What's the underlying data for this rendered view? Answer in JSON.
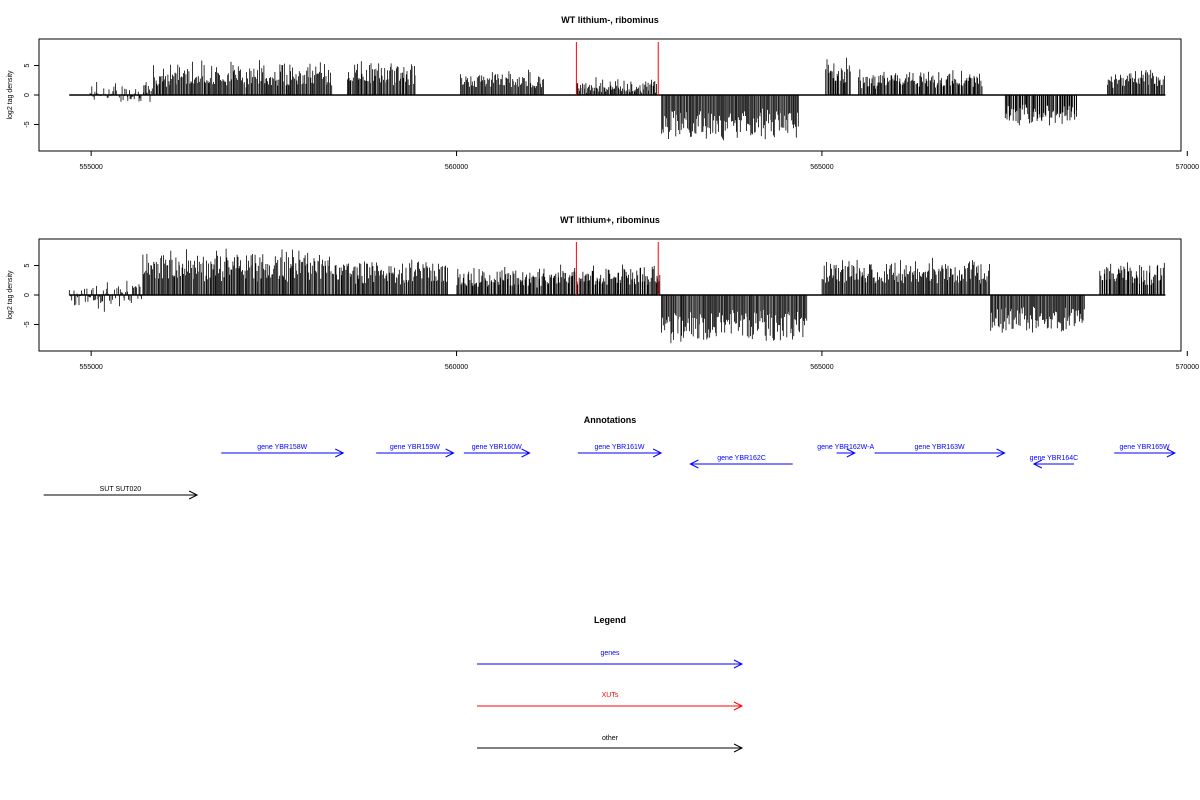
{
  "colors": {
    "genes": "#0000ff",
    "xuts": "#ff0000",
    "other": "#000000",
    "frame": "#000000",
    "red_marker": "#ff0000"
  },
  "chart_data": [
    {
      "type": "bar",
      "title": "WT lithium-, ribominus",
      "xlabel": "",
      "ylabel": "log2 tag density",
      "xlim": [
        554300,
        569900
      ],
      "ylim": [
        -9.5,
        9.5
      ],
      "xticks": [
        555000,
        560000,
        565000,
        570000
      ],
      "xtick_labels": [
        "555000",
        "560000",
        "565000",
        "570000"
      ],
      "yticks": [
        5,
        0,
        -5
      ],
      "ytick_labels": [
        "5",
        "0",
        "-5"
      ],
      "red_markers_x": [
        561640,
        562760
      ],
      "series": [
        {
          "x": [
            554980,
            555850
          ],
          "y": [
            -1.5,
            2.5
          ]
        },
        {
          "x": [
            555850,
            558300
          ],
          "y": [
            3.5,
            6.5
          ]
        },
        {
          "x": [
            558500,
            559450
          ],
          "y": [
            4.5,
            6.0
          ]
        },
        {
          "x": [
            560050,
            561200
          ],
          "y": [
            3.0,
            4.5
          ]
        },
        {
          "x": [
            561640,
            562760
          ],
          "y": [
            0.8,
            3.5
          ]
        },
        {
          "x": [
            562800,
            564700
          ],
          "y": [
            -6.5,
            -8.0
          ]
        },
        {
          "x": [
            565050,
            565400
          ],
          "y": [
            5.0,
            6.5
          ]
        },
        {
          "x": [
            565500,
            567200
          ],
          "y": [
            3.0,
            4.5
          ]
        },
        {
          "x": [
            567500,
            568500
          ],
          "y": [
            -4.5,
            -5.5
          ]
        },
        {
          "x": [
            568900,
            569700
          ],
          "y": [
            3.0,
            4.5
          ]
        }
      ]
    },
    {
      "type": "bar",
      "title": "WT lithium+, ribominus",
      "xlabel": "",
      "ylabel": "log2 tag density",
      "xlim": [
        554300,
        569900
      ],
      "ylim": [
        -9.5,
        9.5
      ],
      "xticks": [
        555000,
        560000,
        565000,
        570000
      ],
      "xtick_labels": [
        "555000",
        "560000",
        "565000",
        "570000"
      ],
      "yticks": [
        5,
        0,
        -5
      ],
      "ytick_labels": [
        "5",
        "0",
        "-5"
      ],
      "red_markers_x": [
        561640,
        562760
      ],
      "series": [
        {
          "x": [
            554700,
            555700
          ],
          "y": [
            -3.5,
            3.0
          ]
        },
        {
          "x": [
            555700,
            558300
          ],
          "y": [
            6.0,
            8.0
          ]
        },
        {
          "x": [
            558300,
            559900
          ],
          "y": [
            5.0,
            6.5
          ]
        },
        {
          "x": [
            560000,
            561300
          ],
          "y": [
            3.5,
            5.0
          ]
        },
        {
          "x": [
            561300,
            562800
          ],
          "y": [
            4.0,
            5.5
          ]
        },
        {
          "x": [
            562800,
            564800
          ],
          "y": [
            -7.0,
            -8.5
          ]
        },
        {
          "x": [
            565000,
            567300
          ],
          "y": [
            5.0,
            6.5
          ]
        },
        {
          "x": [
            567300,
            568600
          ],
          "y": [
            -5.5,
            -6.5
          ]
        },
        {
          "x": [
            568800,
            569700
          ],
          "y": [
            4.0,
            6.5
          ]
        }
      ]
    }
  ],
  "annotations": {
    "title": "Annotations",
    "features": [
      {
        "label": "gene YBR158W",
        "start": 556780,
        "end": 558450,
        "strand": "+",
        "type": "gene",
        "row": 1
      },
      {
        "label": "gene YBR159W",
        "start": 558900,
        "end": 559960,
        "strand": "+",
        "type": "gene",
        "row": 1
      },
      {
        "label": "gene YBR160W",
        "start": 560100,
        "end": 561000,
        "strand": "+",
        "type": "gene",
        "row": 1
      },
      {
        "label": "gene YBR161W",
        "start": 561660,
        "end": 562800,
        "strand": "+",
        "type": "gene",
        "row": 1
      },
      {
        "label": "gene YBR162C",
        "start": 563200,
        "end": 564600,
        "strand": "-",
        "type": "gene",
        "row": 2
      },
      {
        "label": "gene YBR162W-A",
        "start": 565200,
        "end": 565450,
        "strand": "+",
        "type": "gene",
        "row": 1
      },
      {
        "label": "gene YBR163W",
        "start": 565720,
        "end": 567500,
        "strand": "+",
        "type": "gene",
        "row": 1
      },
      {
        "label": "gene YBR164C",
        "start": 567900,
        "end": 568450,
        "strand": "-",
        "type": "gene",
        "row": 2
      },
      {
        "label": "gene YBR165W",
        "start": 569000,
        "end": 569830,
        "strand": "+",
        "type": "gene",
        "row": 1
      },
      {
        "label": "SUT SUT020",
        "start": 554350,
        "end": 556450,
        "strand": "+",
        "type": "other",
        "row": 3
      }
    ]
  },
  "legend": {
    "title": "Legend",
    "items": [
      {
        "label": "genes",
        "type": "genes"
      },
      {
        "label": "XUTs",
        "type": "xuts"
      },
      {
        "label": "other",
        "type": "other"
      }
    ]
  }
}
